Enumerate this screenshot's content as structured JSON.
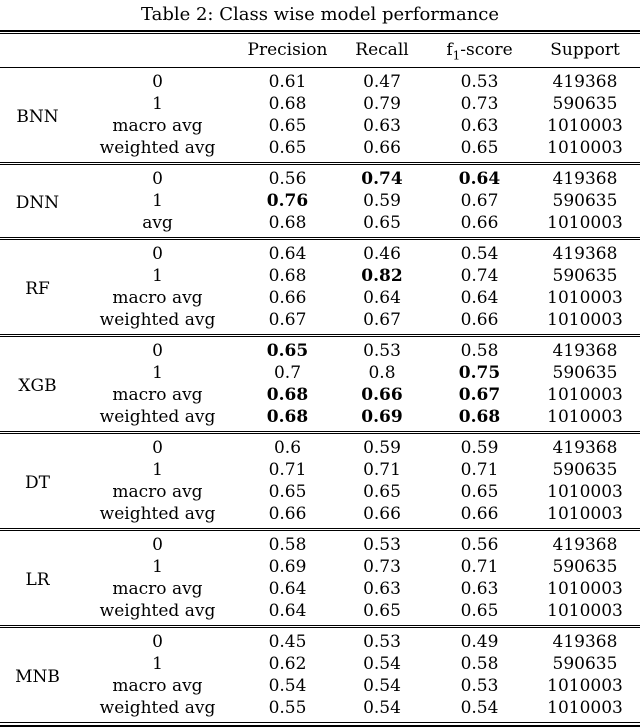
{
  "title": "Table 2: Class wise model performance",
  "columns": {
    "precision": "Precision",
    "recall": "Recall",
    "f1_prefix": "f",
    "f1_subscript": "1",
    "f1_suffix": "-score",
    "support": "Support"
  },
  "groups": [
    {
      "model": "BNN",
      "rows": [
        {
          "label": "0",
          "precision": "0.61",
          "recall": "0.47",
          "f1": "0.53",
          "support": "419368",
          "bold": []
        },
        {
          "label": "1",
          "precision": "0.68",
          "recall": "0.79",
          "f1": "0.73",
          "support": "590635",
          "bold": []
        },
        {
          "label": "macro avg",
          "precision": "0.65",
          "recall": "0.63",
          "f1": "0.63",
          "support": "1010003",
          "bold": []
        },
        {
          "label": "weighted avg",
          "precision": "0.65",
          "recall": "0.66",
          "f1": "0.65",
          "support": "1010003",
          "bold": []
        }
      ]
    },
    {
      "model": "DNN",
      "rows": [
        {
          "label": "0",
          "precision": "0.56",
          "recall": "0.74",
          "f1": "0.64",
          "support": "419368",
          "bold": [
            "recall",
            "f1"
          ]
        },
        {
          "label": "1",
          "precision": "0.76",
          "recall": "0.59",
          "f1": "0.67",
          "support": "590635",
          "bold": [
            "precision"
          ]
        },
        {
          "label": "avg",
          "precision": "0.68",
          "recall": "0.65",
          "f1": "0.66",
          "support": "1010003",
          "bold": []
        }
      ]
    },
    {
      "model": "RF",
      "rows": [
        {
          "label": "0",
          "precision": "0.64",
          "recall": "0.46",
          "f1": "0.54",
          "support": "419368",
          "bold": []
        },
        {
          "label": "1",
          "precision": "0.68",
          "recall": "0.82",
          "f1": "0.74",
          "support": "590635",
          "bold": [
            "recall"
          ]
        },
        {
          "label": "macro avg",
          "precision": "0.66",
          "recall": "0.64",
          "f1": "0.64",
          "support": "1010003",
          "bold": []
        },
        {
          "label": "weighted avg",
          "precision": "0.67",
          "recall": "0.67",
          "f1": "0.66",
          "support": "1010003",
          "bold": []
        }
      ]
    },
    {
      "model": "XGB",
      "rows": [
        {
          "label": "0",
          "precision": "0.65",
          "recall": "0.53",
          "f1": "0.58",
          "support": "419368",
          "bold": [
            "precision"
          ]
        },
        {
          "label": "1",
          "precision": "0.7",
          "recall": "0.8",
          "f1": "0.75",
          "support": "590635",
          "bold": [
            "f1"
          ]
        },
        {
          "label": "macro avg",
          "precision": "0.68",
          "recall": "0.66",
          "f1": "0.67",
          "support": "1010003",
          "bold": [
            "precision",
            "recall",
            "f1"
          ]
        },
        {
          "label": "weighted avg",
          "precision": "0.68",
          "recall": "0.69",
          "f1": "0.68",
          "support": "1010003",
          "bold": [
            "precision",
            "recall",
            "f1"
          ]
        }
      ]
    },
    {
      "model": "DT",
      "rows": [
        {
          "label": "0",
          "precision": "0.6",
          "recall": "0.59",
          "f1": "0.59",
          "support": "419368",
          "bold": []
        },
        {
          "label": "1",
          "precision": "0.71",
          "recall": "0.71",
          "f1": "0.71",
          "support": "590635",
          "bold": []
        },
        {
          "label": "macro avg",
          "precision": "0.65",
          "recall": "0.65",
          "f1": "0.65",
          "support": "1010003",
          "bold": []
        },
        {
          "label": "weighted avg",
          "precision": "0.66",
          "recall": "0.66",
          "f1": "0.66",
          "support": "1010003",
          "bold": []
        }
      ]
    },
    {
      "model": "LR",
      "rows": [
        {
          "label": "0",
          "precision": "0.58",
          "recall": "0.53",
          "f1": "0.56",
          "support": "419368",
          "bold": []
        },
        {
          "label": "1",
          "precision": "0.69",
          "recall": "0.73",
          "f1": "0.71",
          "support": "590635",
          "bold": []
        },
        {
          "label": "macro avg",
          "precision": "0.64",
          "recall": "0.63",
          "f1": "0.63",
          "support": "1010003",
          "bold": []
        },
        {
          "label": "weighted avg",
          "precision": "0.64",
          "recall": "0.65",
          "f1": "0.65",
          "support": "1010003",
          "bold": []
        }
      ]
    },
    {
      "model": "MNB",
      "rows": [
        {
          "label": "0",
          "precision": "0.45",
          "recall": "0.53",
          "f1": "0.49",
          "support": "419368",
          "bold": []
        },
        {
          "label": "1",
          "precision": "0.62",
          "recall": "0.54",
          "f1": "0.58",
          "support": "590635",
          "bold": []
        },
        {
          "label": "macro avg",
          "precision": "0.54",
          "recall": "0.54",
          "f1": "0.53",
          "support": "1010003",
          "bold": []
        },
        {
          "label": "weighted avg",
          "precision": "0.55",
          "recall": "0.54",
          "f1": "0.54",
          "support": "1010003",
          "bold": []
        }
      ]
    }
  ]
}
